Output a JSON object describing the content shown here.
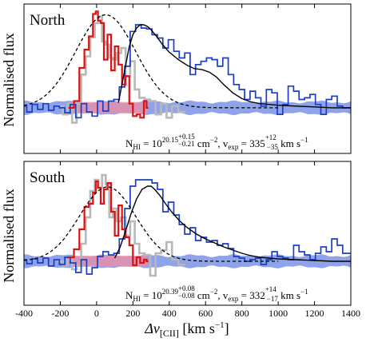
{
  "chart_data": {
    "type": "line",
    "xlabel": "Δv",
    "xlabel_sub": "[CII]",
    "xlabel_unit": " [km s",
    "xlabel_unit_exp": "−1",
    "xlabel_unit_close": "]",
    "ylabel": "Normalised flux",
    "xlim": [
      -400,
      1400
    ],
    "xticks": [
      -400,
      -200,
      0,
      200,
      400,
      600,
      800,
      1000,
      1200,
      1400
    ],
    "xtick_labels": [
      "-400",
      "-200",
      "0",
      "200",
      "400",
      "600",
      "800",
      "1000",
      "1200",
      "1400"
    ],
    "colors": {
      "red": "#dd1111",
      "blue": "#1a3fc4",
      "gray": "#b8b8b8",
      "band_blue": "#7a93e6",
      "band_red": "#f08ca0",
      "model": "#000000"
    },
    "panels": [
      {
        "title": "North",
        "ylim": [
          -0.55,
          1.25
        ],
        "annotation": {
          "n_label": "N",
          "n_sub": "HI",
          "n_eq": " = 10",
          "n_exp": "20.15",
          "n_exp_up": "+0.15",
          "n_exp_dn": "−0.21",
          "n_unit": " cm",
          "n_unit_exp": "−2",
          "v_sep": ", v",
          "v_sub": "exp",
          "v_eq": " = 335",
          "v_up": "+12",
          "v_dn": "−35",
          "v_unit": " km s",
          "v_unit_exp": "−1"
        },
        "noise_band": {
          "x": [
            -400,
            1400
          ],
          "half_width": 0.07
        },
        "red_band": {
          "x": [
            -140,
            280
          ],
          "half_width": 0.07
        },
        "red_spectrum": {
          "x": [
            -140,
            -110,
            -80,
            -55,
            -30,
            -10,
            0,
            15,
            30,
            50,
            70,
            90,
            110,
            130,
            150,
            170,
            190,
            210,
            230,
            250,
            270,
            280
          ],
          "y": [
            0.0,
            0.08,
            0.48,
            0.7,
            0.86,
            1.13,
            1.16,
            1.05,
            1.02,
            0.58,
            0.88,
            0.45,
            0.74,
            0.52,
            0.28,
            0.38,
            0.05,
            -0.1,
            -0.08,
            -0.12,
            0.08,
            0.0
          ]
        },
        "gray_spectrum": {
          "x": [
            -200,
            -170,
            -150,
            -120,
            -100,
            -70,
            -50,
            -20,
            0,
            20,
            40,
            60,
            80,
            100,
            120,
            150,
            170,
            200,
            220,
            250,
            280,
            310,
            340,
            370,
            400,
            430,
            470
          ],
          "y": [
            0.02,
            -0.08,
            0.05,
            -0.18,
            0.05,
            0.4,
            0.62,
            0.85,
            1.02,
            1.1,
            0.8,
            0.76,
            0.6,
            0.58,
            0.66,
            0.72,
            0.38,
            0.56,
            0.22,
            0.12,
            0.1,
            0.08,
            -0.08,
            0.05,
            -0.12,
            0.02,
            -0.05
          ]
        },
        "blue_spectrum": {
          "x": [
            -400,
            -370,
            -340,
            -310,
            -280,
            -250,
            -220,
            -190,
            -160,
            -130,
            -100,
            -70,
            -40,
            -10,
            20,
            50,
            80,
            110,
            140,
            170,
            200,
            230,
            260,
            290,
            320,
            350,
            380,
            410,
            440,
            470,
            500,
            530,
            560,
            590,
            620,
            650,
            680,
            710,
            740,
            770,
            800,
            830,
            860,
            890,
            920,
            950,
            980,
            1010,
            1040,
            1070,
            1100,
            1130,
            1160,
            1190,
            1220,
            1250,
            1280,
            1310,
            1340,
            1370,
            1400
          ],
          "y": [
            0.02,
            -0.05,
            0.04,
            -0.02,
            0.05,
            -0.03,
            0.02,
            0.0,
            -0.06,
            0.04,
            -0.12,
            0.05,
            -0.05,
            -0.1,
            0.08,
            -0.04,
            0.08,
            0.1,
            0.25,
            0.5,
            0.92,
            1.0,
            0.96,
            0.95,
            0.88,
            0.84,
            0.72,
            0.82,
            0.68,
            0.6,
            0.66,
            0.4,
            0.52,
            0.56,
            0.6,
            0.58,
            0.5,
            0.6,
            0.4,
            0.28,
            0.22,
            0.1,
            0.2,
            0.12,
            0.02,
            0.22,
            0.18,
            -0.08,
            0.04,
            0.26,
            0.2,
            0.1,
            0.12,
            0.16,
            0.04,
            -0.08,
            0.1,
            0.14,
            0.02,
            0.0,
            0.0
          ]
        },
        "dashed_model": {
          "type": "gaussian",
          "amp": 1.12,
          "mu": 50,
          "sigma": 165,
          "x_range": [
            -400,
            1000
          ]
        },
        "solid_model": {
          "x": [
            120,
            150,
            180,
            200,
            220,
            240,
            260,
            280,
            300,
            330,
            360,
            400,
            450,
            500,
            540,
            580,
            620,
            660,
            700,
            750,
            800,
            850,
            900,
            1000,
            1100,
            1200,
            1300,
            1400
          ],
          "y": [
            0.06,
            0.4,
            0.74,
            0.88,
            0.96,
            1.0,
            1.0,
            0.98,
            0.94,
            0.86,
            0.77,
            0.67,
            0.58,
            0.51,
            0.47,
            0.46,
            0.43,
            0.37,
            0.28,
            0.18,
            0.11,
            0.07,
            0.05,
            0.03,
            0.02,
            0.01,
            0.0,
            0.0
          ]
        }
      },
      {
        "title": "South",
        "ylim": [
          -0.55,
          1.25
        ],
        "annotation": {
          "n_label": "N",
          "n_sub": "HI",
          "n_eq": " = 10",
          "n_exp": "20.39",
          "n_exp_up": "+0.08",
          "n_exp_dn": "−0.08",
          "n_unit": " cm",
          "n_unit_exp": "−2",
          "v_sep": ", v",
          "v_sub": "exp",
          "v_eq": " = 332",
          "v_up": "+14",
          "v_dn": "−17",
          "v_unit": " km s",
          "v_unit_exp": "−1"
        },
        "noise_band": {
          "x": [
            -400,
            1400
          ],
          "half_width": 0.07
        },
        "red_band": {
          "x": [
            -140,
            280
          ],
          "half_width": 0.07
        },
        "red_spectrum": {
          "x": [
            -140,
            -110,
            -80,
            -55,
            -30,
            -10,
            0,
            15,
            30,
            50,
            70,
            90,
            110,
            130,
            150,
            170,
            190,
            210,
            230,
            250,
            270,
            280
          ],
          "y": [
            0.05,
            0.15,
            0.4,
            0.68,
            0.72,
            0.86,
            1.0,
            0.92,
            0.72,
            0.9,
            0.98,
            0.62,
            0.32,
            0.7,
            0.4,
            0.3,
            0.2,
            -0.05,
            0.05,
            -0.02,
            0.02,
            0.0
          ]
        },
        "gray_spectrum": {
          "x": [
            -200,
            -170,
            -150,
            -120,
            -100,
            -70,
            -50,
            -20,
            0,
            20,
            40,
            60,
            80,
            100,
            120,
            150,
            170,
            200,
            220,
            250,
            280,
            310,
            340,
            370,
            400,
            430,
            470
          ],
          "y": [
            0.0,
            -0.05,
            0.02,
            -0.1,
            -0.05,
            0.22,
            0.55,
            0.88,
            1.02,
            0.92,
            1.08,
            0.96,
            0.55,
            0.66,
            0.5,
            0.55,
            0.32,
            0.5,
            0.22,
            0.1,
            0.08,
            -0.18,
            0.1,
            0.14,
            0.24,
            0.02,
            -0.04
          ]
        },
        "blue_spectrum": {
          "x": [
            -400,
            -370,
            -340,
            -310,
            -280,
            -250,
            -220,
            -190,
            -160,
            -130,
            -100,
            -70,
            -40,
            -10,
            20,
            50,
            80,
            110,
            140,
            170,
            200,
            230,
            260,
            290,
            320,
            350,
            380,
            410,
            440,
            470,
            500,
            530,
            560,
            590,
            620,
            650,
            680,
            710,
            740,
            770,
            800,
            830,
            860,
            890,
            920,
            950,
            980,
            1010,
            1040,
            1070,
            1100,
            1130,
            1160,
            1190,
            1220,
            1250,
            1280,
            1310,
            1340,
            1370,
            1400
          ],
          "y": [
            0.02,
            -0.03,
            0.03,
            -0.02,
            0.04,
            -0.06,
            0.02,
            -0.04,
            0.05,
            -0.02,
            -0.14,
            0.02,
            -0.16,
            -0.08,
            0.06,
            0.12,
            0.08,
            0.1,
            0.28,
            0.66,
            0.94,
            1.02,
            1.02,
            1.02,
            0.98,
            0.9,
            0.62,
            0.74,
            0.58,
            0.46,
            0.34,
            0.42,
            0.26,
            0.3,
            0.24,
            0.26,
            0.2,
            0.22,
            0.16,
            0.06,
            0.04,
            0.0,
            0.02,
            0.04,
            -0.04,
            0.02,
            0.12,
            0.06,
            0.04,
            0.02,
            0.2,
            0.12,
            0.08,
            0.02,
            0.1,
            0.18,
            0.12,
            0.28,
            0.2,
            0.1,
            0.1
          ]
        },
        "dashed_model": {
          "type": "gaussian",
          "amp": 0.93,
          "mu": 60,
          "sigma": 155,
          "x_range": [
            -400,
            1000
          ]
        },
        "solid_model": {
          "x": [
            100,
            130,
            160,
            190,
            220,
            250,
            280,
            300,
            320,
            350,
            380,
            420,
            460,
            500,
            550,
            600,
            650,
            700,
            750,
            800,
            850,
            900,
            950,
            1000,
            1100,
            1200,
            1300,
            1400
          ],
          "y": [
            0.04,
            0.18,
            0.38,
            0.6,
            0.78,
            0.9,
            0.94,
            0.94,
            0.9,
            0.82,
            0.72,
            0.6,
            0.5,
            0.42,
            0.34,
            0.28,
            0.23,
            0.18,
            0.14,
            0.1,
            0.07,
            0.05,
            0.04,
            0.03,
            0.02,
            0.01,
            0.0,
            0.0
          ]
        }
      }
    ]
  }
}
